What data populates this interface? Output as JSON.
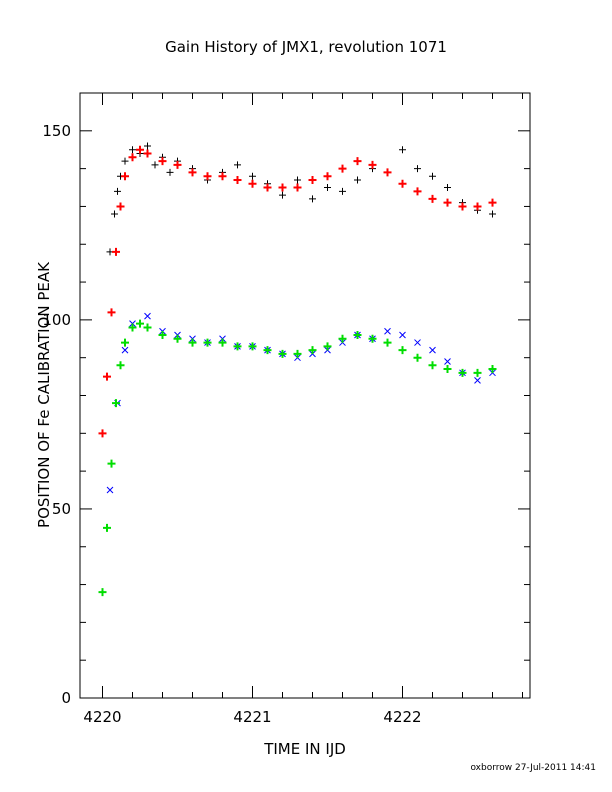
{
  "chart_data": {
    "type": "scatter",
    "title": "Gain History of JMX1, revolution 1071",
    "xlabel": "TIME IN IJD",
    "ylabel": "POSITION OF Fe CALIBRATION PEAK",
    "footer": "oxborrow 27-Jul-2011 14:41",
    "xlim": [
      4219.85,
      4222.85
    ],
    "ylim": [
      0,
      160
    ],
    "xticks": [
      4220,
      4221,
      4222
    ],
    "xtick_labels": [
      "4220",
      "4221",
      "4222"
    ],
    "yticks": [
      0,
      50,
      100,
      150
    ],
    "ytick_labels": [
      "0",
      "50",
      "100",
      "150"
    ],
    "grid": false,
    "series": [
      {
        "style": "raw-upper",
        "marker": "plus",
        "color": "#000000",
        "x": [
          4220.05,
          4220.08,
          4220.1,
          4220.12,
          4220.15,
          4220.2,
          4220.25,
          4220.3,
          4220.35,
          4220.4,
          4220.45,
          4220.5,
          4220.6,
          4220.7,
          4220.8,
          4220.9,
          4221.0,
          4221.1,
          4221.2,
          4221.3,
          4221.4,
          4221.5,
          4221.6,
          4221.7,
          4221.8,
          4221.9,
          4222.0,
          4222.1,
          4222.2,
          4222.3,
          4222.4,
          4222.5,
          4222.6
        ],
        "y": [
          118,
          128,
          134,
          138,
          142,
          145,
          144,
          146,
          141,
          143,
          139,
          142,
          140,
          137,
          139,
          141,
          138,
          136,
          133,
          137,
          132,
          135,
          134,
          137,
          140,
          139,
          145,
          140,
          138,
          135,
          131,
          129,
          128
        ]
      },
      {
        "style": "fit-upper",
        "marker": "plus",
        "color": "#ff0000",
        "x": [
          4220.0,
          4220.03,
          4220.06,
          4220.09,
          4220.12,
          4220.15,
          4220.2,
          4220.25,
          4220.3,
          4220.4,
          4220.5,
          4220.6,
          4220.7,
          4220.8,
          4220.9,
          4221.0,
          4221.1,
          4221.2,
          4221.3,
          4221.4,
          4221.5,
          4221.6,
          4221.7,
          4221.8,
          4221.9,
          4222.0,
          4222.1,
          4222.2,
          4222.3,
          4222.4,
          4222.5,
          4222.6
        ],
        "y": [
          70,
          85,
          102,
          118,
          130,
          138,
          143,
          145,
          144,
          142,
          141,
          139,
          138,
          138,
          137,
          136,
          135,
          135,
          135,
          137,
          138,
          140,
          142,
          141,
          139,
          136,
          134,
          132,
          131,
          130,
          130,
          131
        ]
      },
      {
        "style": "raw-lower",
        "marker": "cross",
        "color": "#0000ff",
        "x": [
          4220.05,
          4220.1,
          4220.15,
          4220.2,
          4220.3,
          4220.4,
          4220.5,
          4220.6,
          4220.7,
          4220.8,
          4220.9,
          4221.0,
          4221.1,
          4221.2,
          4221.3,
          4221.4,
          4221.5,
          4221.6,
          4221.7,
          4221.8,
          4221.9,
          4222.0,
          4222.1,
          4222.2,
          4222.3,
          4222.4,
          4222.5,
          4222.6
        ],
        "y": [
          55,
          78,
          92,
          99,
          101,
          97,
          96,
          95,
          94,
          95,
          93,
          93,
          92,
          91,
          90,
          91,
          92,
          94,
          96,
          95,
          97,
          96,
          94,
          92,
          89,
          86,
          84,
          86
        ]
      },
      {
        "style": "fit-lower",
        "marker": "plus",
        "color": "#00dd00",
        "x": [
          4220.0,
          4220.03,
          4220.06,
          4220.09,
          4220.12,
          4220.15,
          4220.2,
          4220.25,
          4220.3,
          4220.4,
          4220.5,
          4220.6,
          4220.7,
          4220.8,
          4220.9,
          4221.0,
          4221.1,
          4221.2,
          4221.3,
          4221.4,
          4221.5,
          4221.6,
          4221.7,
          4221.8,
          4221.9,
          4222.0,
          4222.1,
          4222.2,
          4222.3,
          4222.4,
          4222.5,
          4222.6
        ],
        "y": [
          28,
          45,
          62,
          78,
          88,
          94,
          98,
          99,
          98,
          96,
          95,
          94,
          94,
          94,
          93,
          93,
          92,
          91,
          91,
          92,
          93,
          95,
          96,
          95,
          94,
          92,
          90,
          88,
          87,
          86,
          86,
          87
        ]
      }
    ]
  }
}
